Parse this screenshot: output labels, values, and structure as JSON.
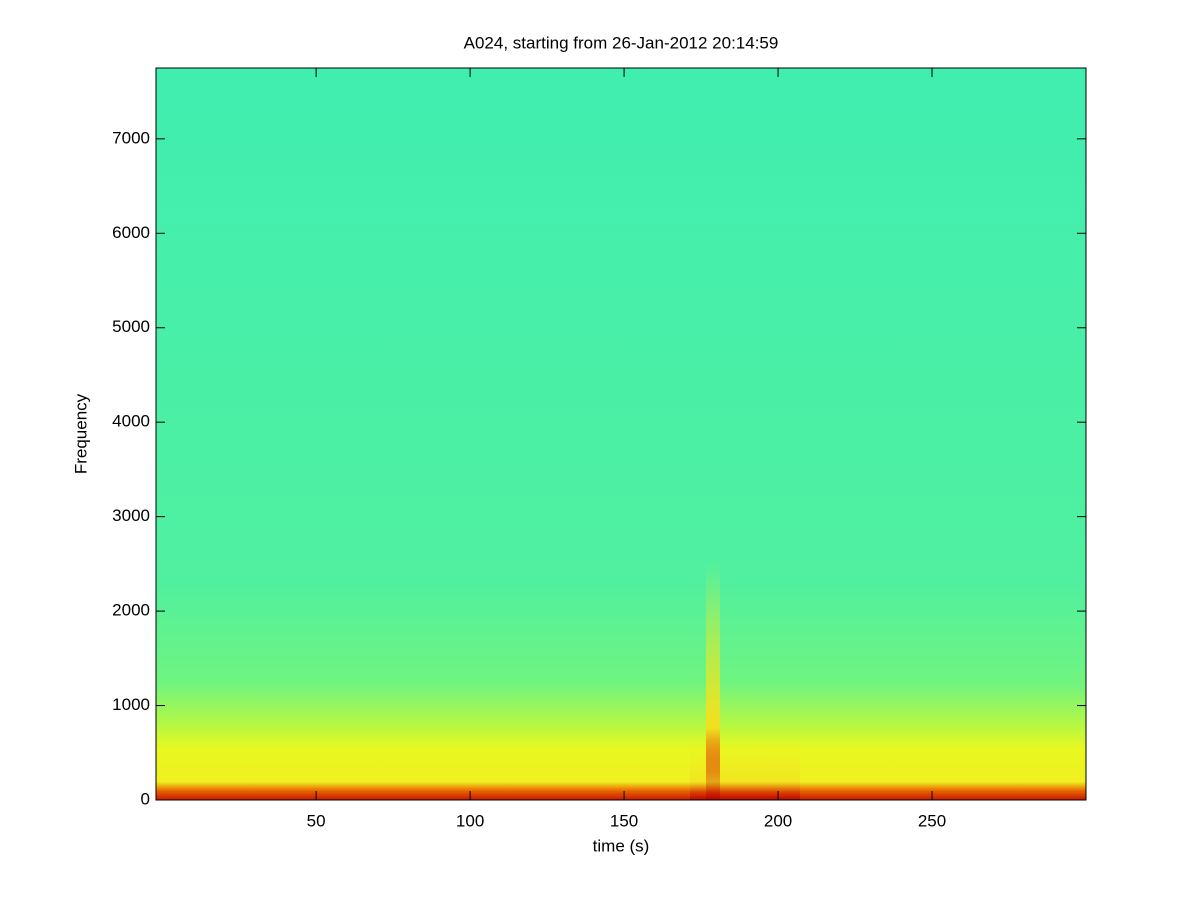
{
  "chart_data": {
    "type": "spectrogram",
    "title": "A024, starting from 26-Jan-2012 20:14:59",
    "x_label": "time (s)",
    "y_label": "Frequency",
    "xlim": [
      -2,
      300
    ],
    "ylim": [
      0,
      7750
    ],
    "xticks": [
      50,
      100,
      150,
      200,
      250
    ],
    "yticks": [
      0,
      1000,
      2000,
      3000,
      4000,
      5000,
      6000,
      7000
    ]
  }
}
